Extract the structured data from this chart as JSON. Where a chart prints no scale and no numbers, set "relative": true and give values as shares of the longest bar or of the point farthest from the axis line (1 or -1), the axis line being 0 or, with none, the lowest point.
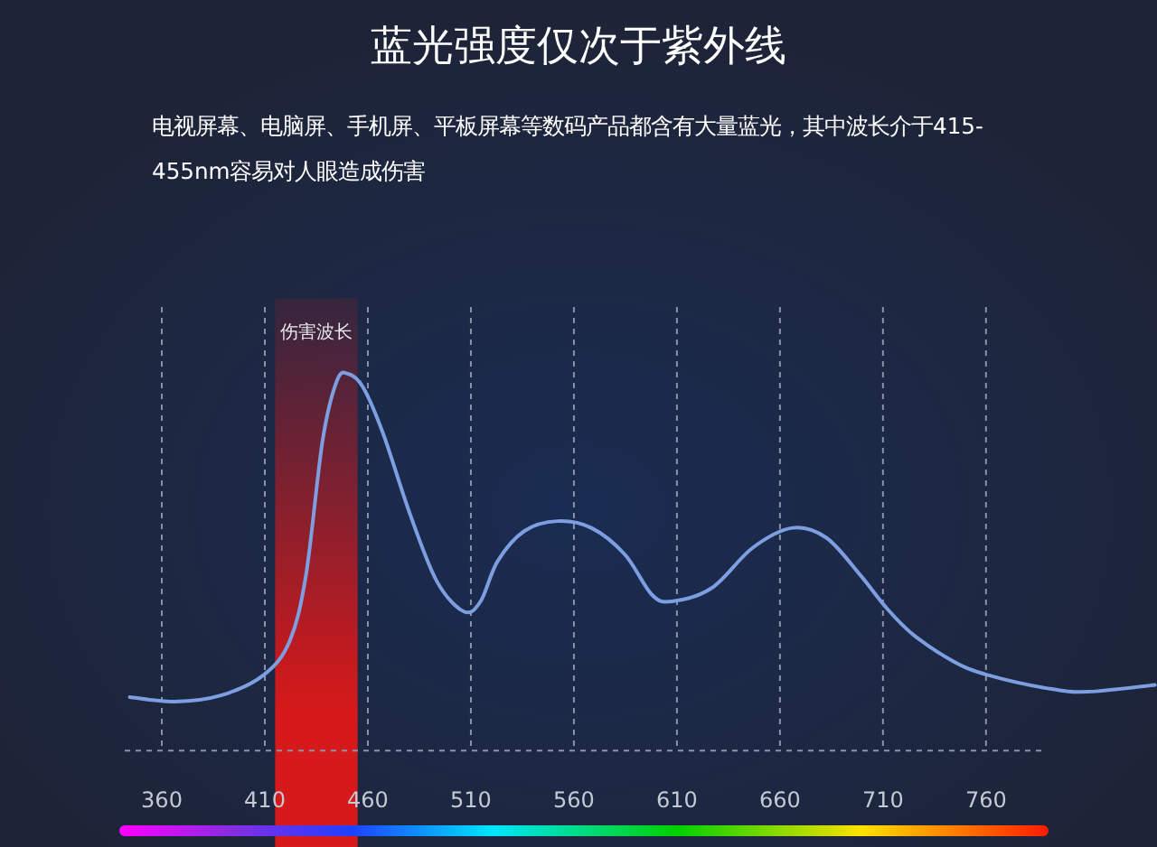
{
  "chart_data": {
    "type": "line",
    "title": "蓝光强度仅次于紫外线",
    "subtitle": "电视屏幕、电脑屏、手机屏、平板屏幕等数码产品都含有大量蓝光，其中波长介于415-455nm容易对人眼造成伤害",
    "relative": true,
    "grid": "x",
    "color": "#7d9fe2",
    "x": [
      344.4,
      366.5,
      389,
      409.5,
      422,
      430,
      438,
      445,
      450.5,
      457.7,
      467.5,
      480.5,
      493.5,
      506.6,
      514.7,
      523,
      536,
      552,
      568.5,
      584.8,
      597.8,
      607.6,
      627,
      646.7,
      666,
      682.5,
      698.8,
      711.8,
      724.8,
      744.4,
      760.6,
      790,
      809.5,
      842
    ],
    "values": [
      0.142,
      0.13,
      0.147,
      0.201,
      0.29,
      0.467,
      0.822,
      0.982,
      1,
      0.964,
      0.84,
      0.627,
      0.449,
      0.369,
      0.396,
      0.503,
      0.583,
      0.609,
      0.591,
      0.52,
      0.414,
      0.396,
      0.432,
      0.538,
      0.591,
      0.565,
      0.467,
      0.378,
      0.307,
      0.236,
      0.201,
      0.165,
      0.156,
      0.174
    ],
    "xlim": [
      342,
      843
    ],
    "xticks": [
      360,
      410,
      460,
      510,
      560,
      610,
      660,
      710,
      760
    ],
    "bands": [
      {
        "axis": "x",
        "from": 415,
        "to": 455,
        "label": "伤害波长",
        "color": "#e01818"
      }
    ]
  }
}
